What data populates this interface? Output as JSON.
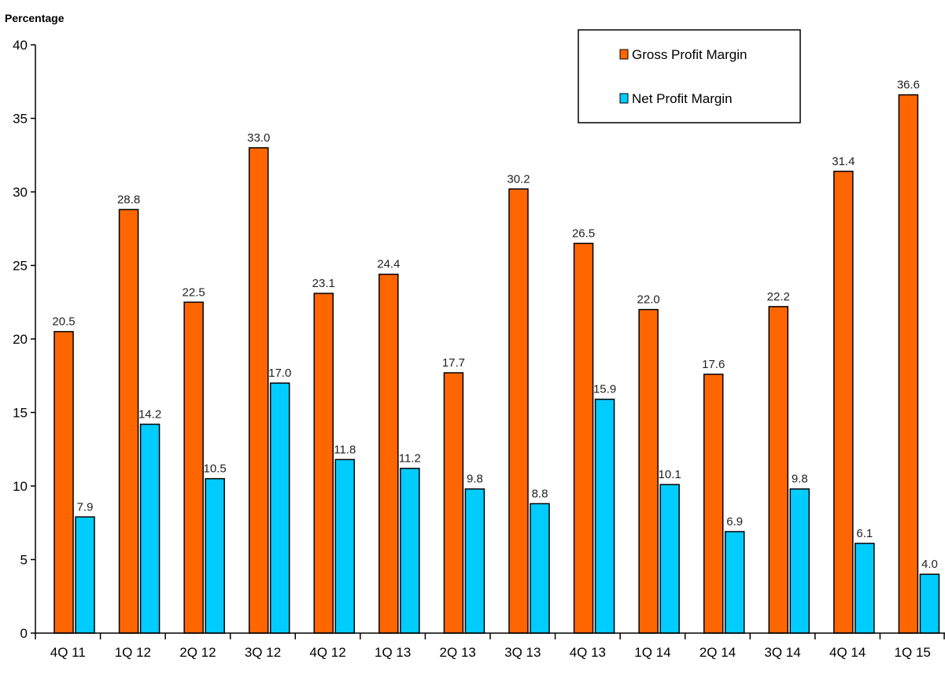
{
  "chart_data": {
    "type": "bar",
    "ylabel": "Percentage",
    "xlabel": "",
    "ylim": [
      0,
      40
    ],
    "yticks": [
      0,
      5,
      10,
      15,
      20,
      25,
      30,
      35,
      40
    ],
    "grid": false,
    "legend_position": "top-right",
    "categories": [
      "4Q 11",
      "1Q 12",
      "2Q 12",
      "3Q 12",
      "4Q 12",
      "1Q 13",
      "2Q 13",
      "3Q 13",
      "4Q 13",
      "1Q 14",
      "2Q 14",
      "3Q 14",
      "4Q 14",
      "1Q 15"
    ],
    "series": [
      {
        "name": "Gross Profit Margin",
        "color": "#ff6600",
        "values": [
          20.5,
          28.8,
          22.5,
          33.0,
          23.1,
          24.4,
          17.7,
          30.2,
          26.5,
          22.0,
          17.6,
          22.2,
          31.4,
          36.6
        ],
        "labels": [
          "20.5",
          "28.8",
          "22.5",
          "33.0",
          "23.1",
          "24.4",
          "17.7",
          "30.2",
          "26.5",
          "22.0",
          "17.6",
          "22.2",
          "31.4",
          "36.6"
        ]
      },
      {
        "name": "Net Profit Margin",
        "color": "#00ccff",
        "values": [
          7.9,
          14.2,
          10.5,
          17.0,
          11.8,
          11.2,
          9.8,
          8.8,
          15.9,
          10.1,
          6.9,
          9.8,
          6.1,
          4.0
        ],
        "labels": [
          "7.9",
          "14.2",
          "10.5",
          "17.0",
          "11.8",
          "11.2",
          "9.8",
          "8.8",
          "15.9",
          "10.1",
          "6.9",
          "9.8",
          "6.1",
          "4.0"
        ]
      }
    ]
  }
}
